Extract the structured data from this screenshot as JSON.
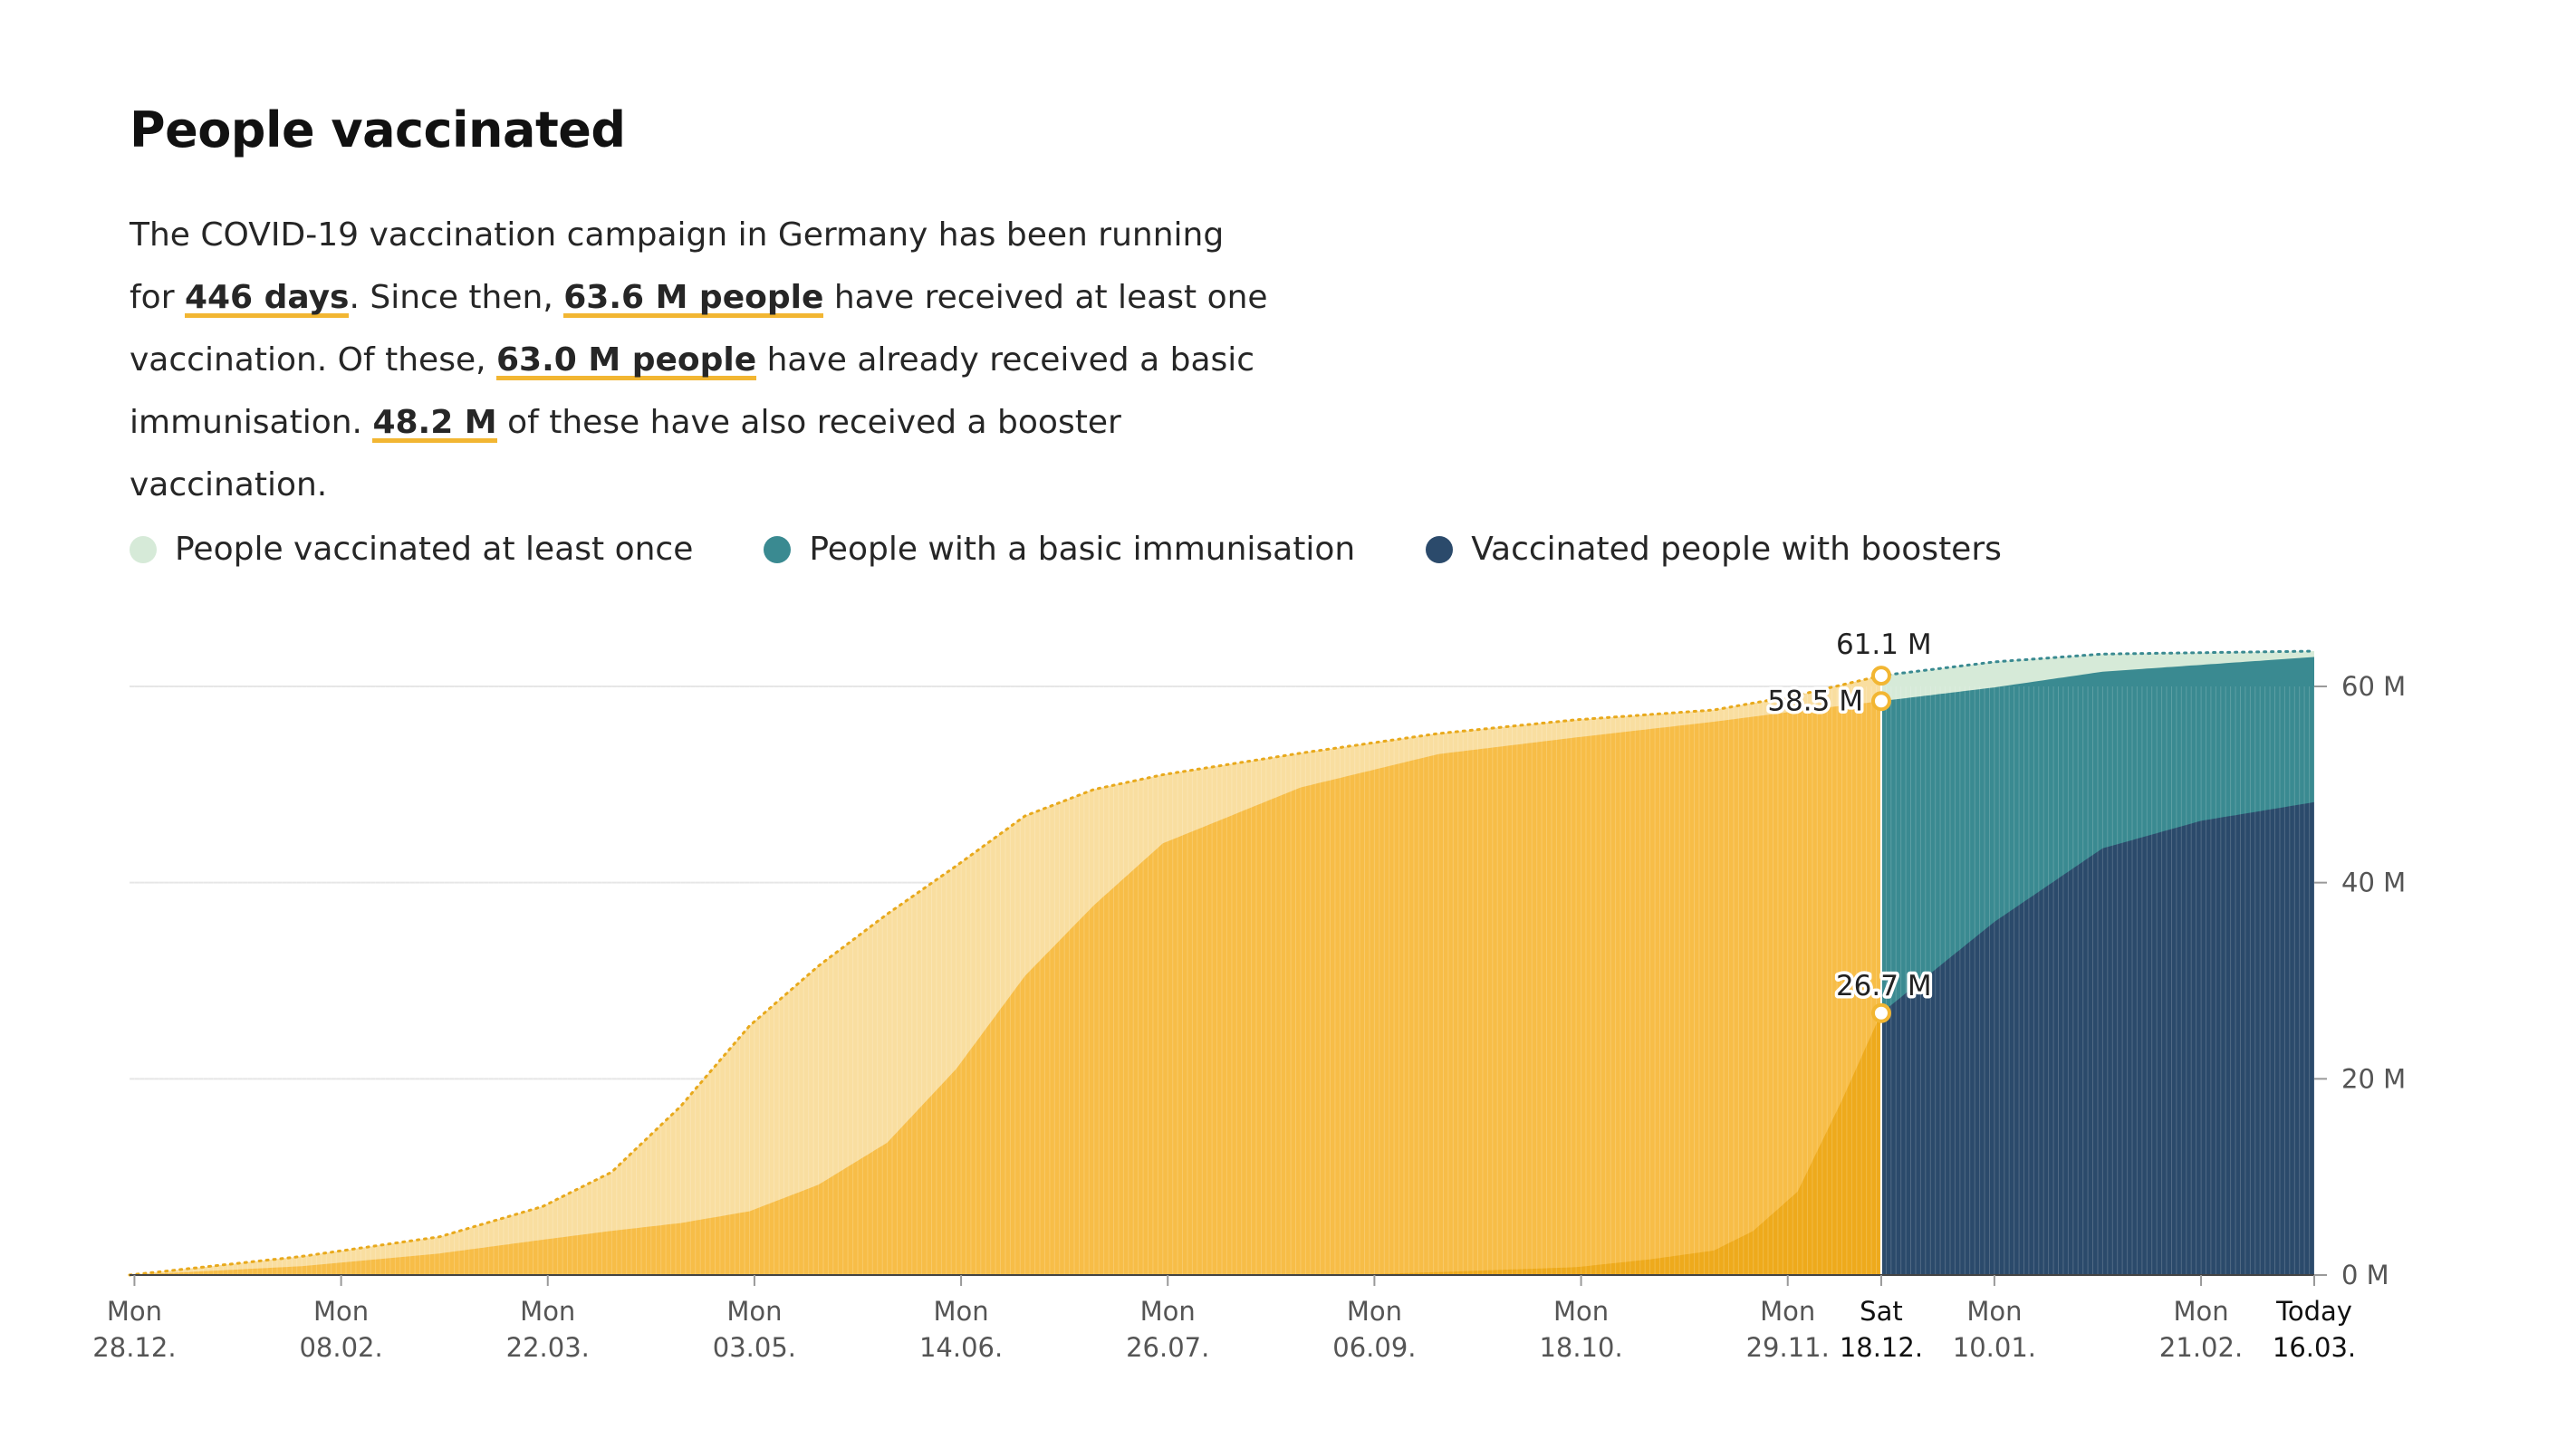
{
  "header": {
    "title": "People vaccinated",
    "intro": {
      "p1": "The COVID-19 vaccination campaign in Germany has been running for ",
      "days": "446 days",
      "p2": ". Since then, ",
      "once": "63.6 M people",
      "p3": " have received at least one vaccination. Of these, ",
      "basic": "63.0 M people",
      "p4": " have already received a basic immunisation. ",
      "booster": "48.2 M",
      "p5": " of these have also received a booster vaccination."
    }
  },
  "legend": [
    {
      "label": "People vaccinated at least once",
      "color": "#d6ead8"
    },
    {
      "label": "People with a basic immunisation",
      "color": "#3a8a91"
    },
    {
      "label": "Vaccinated people with boosters",
      "color": "#2b4a6b"
    }
  ],
  "colors": {
    "once_past": "#f9dea0",
    "basic_past": "#f7bd47",
    "booster_past": "#eeaa1c",
    "once_now": "#d6ead8",
    "basic_now": "#3a8a91",
    "booster_now": "#2b4a6b",
    "grid": "#e6e6e6",
    "axis": "#444444"
  },
  "chart_data": {
    "type": "area",
    "unit": "M",
    "ylim": [
      0,
      60
    ],
    "yticks": [
      0,
      20,
      40,
      60
    ],
    "ytick_labels": [
      "0 M",
      "20 M",
      "40 M",
      "60 M"
    ],
    "highlight_split_date": "2021-12-18",
    "x_ticks": [
      {
        "date": "2020-12-28",
        "weekday": "Mon",
        "label": "28.12."
      },
      {
        "date": "2021-02-08",
        "weekday": "Mon",
        "label": "08.02."
      },
      {
        "date": "2021-03-22",
        "weekday": "Mon",
        "label": "22.03."
      },
      {
        "date": "2021-05-03",
        "weekday": "Mon",
        "label": "03.05."
      },
      {
        "date": "2021-06-14",
        "weekday": "Mon",
        "label": "14.06."
      },
      {
        "date": "2021-07-26",
        "weekday": "Mon",
        "label": "26.07."
      },
      {
        "date": "2021-09-06",
        "weekday": "Mon",
        "label": "06.09."
      },
      {
        "date": "2021-10-18",
        "weekday": "Mon",
        "label": "18.10."
      },
      {
        "date": "2021-11-29",
        "weekday": "Mon",
        "label": "29.11."
      },
      {
        "date": "2021-12-18",
        "weekday": "Sat",
        "label": "18.12.",
        "emphasis": true
      },
      {
        "date": "2022-01-10",
        "weekday": "Mon",
        "label": "10.01."
      },
      {
        "date": "2022-02-21",
        "weekday": "Mon",
        "label": "21.02."
      },
      {
        "date": "2022-03-16",
        "weekday": "Today",
        "label": "16.03.",
        "emphasis": true
      }
    ],
    "series": [
      {
        "name": "People vaccinated at least once",
        "x": [
          "2020-12-27",
          "2021-01-31",
          "2021-02-28",
          "2021-03-21",
          "2021-04-04",
          "2021-04-18",
          "2021-05-02",
          "2021-05-16",
          "2021-05-30",
          "2021-06-13",
          "2021-06-27",
          "2021-07-11",
          "2021-07-25",
          "2021-08-22",
          "2021-09-19",
          "2021-10-17",
          "2021-11-14",
          "2021-12-01",
          "2021-12-18",
          "2022-01-10",
          "2022-02-01",
          "2022-03-16"
        ],
        "values": [
          0,
          1.9,
          3.9,
          7.0,
          10.5,
          17.2,
          25.4,
          31.5,
          36.8,
          41.7,
          46.8,
          49.5,
          51.0,
          53.2,
          55.2,
          56.6,
          57.6,
          59.1,
          61.1,
          62.5,
          63.3,
          63.6
        ]
      },
      {
        "name": "People with a basic immunisation",
        "x": [
          "2020-12-27",
          "2021-01-31",
          "2021-02-28",
          "2021-03-21",
          "2021-04-04",
          "2021-04-18",
          "2021-05-02",
          "2021-05-16",
          "2021-05-30",
          "2021-06-13",
          "2021-06-27",
          "2021-07-11",
          "2021-07-25",
          "2021-08-22",
          "2021-09-19",
          "2021-10-17",
          "2021-11-14",
          "2021-12-01",
          "2021-12-18",
          "2022-01-10",
          "2022-02-01",
          "2022-03-16"
        ],
        "values": [
          0,
          0.9,
          2.2,
          3.6,
          4.5,
          5.3,
          6.5,
          9.2,
          13.5,
          21.0,
          30.5,
          37.7,
          44.0,
          49.7,
          53.1,
          54.8,
          56.4,
          57.5,
          58.5,
          59.9,
          61.5,
          63.0
        ]
      },
      {
        "name": "Vaccinated people with boosters",
        "x": [
          "2020-12-27",
          "2021-08-31",
          "2021-09-19",
          "2021-10-17",
          "2021-11-01",
          "2021-11-14",
          "2021-11-22",
          "2021-12-01",
          "2021-12-10",
          "2021-12-18",
          "2022-01-10",
          "2022-02-01",
          "2022-02-21",
          "2022-03-16"
        ],
        "values": [
          0,
          0,
          0.3,
          0.8,
          1.6,
          2.5,
          4.5,
          8.5,
          17.8,
          26.7,
          36.0,
          43.5,
          46.3,
          48.2
        ]
      }
    ],
    "annotations": [
      {
        "text": "61.1 M",
        "date": "2021-12-18",
        "value": 61.1,
        "series": "People vaccinated at least once"
      },
      {
        "text": "58.5 M",
        "date": "2021-12-18",
        "value": 58.5,
        "series": "People with a basic immunisation"
      },
      {
        "text": "26.7 M",
        "date": "2021-12-18",
        "value": 26.7,
        "series": "Vaccinated people with boosters"
      }
    ]
  }
}
